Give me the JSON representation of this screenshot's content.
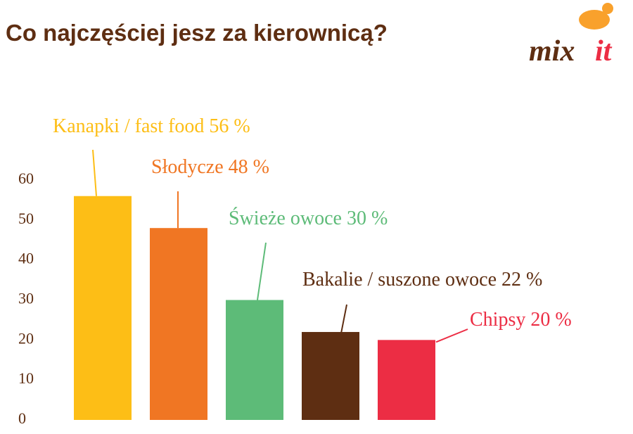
{
  "chart_data": {
    "type": "bar",
    "title": "Co najczęściej jesz za kierownicą?",
    "logo": {
      "left": "mix",
      "right": "it"
    },
    "categories": [
      "Kanapki / fast food",
      "Słodycze",
      "Świeże owoce",
      "Bakalie / suszone owoce",
      "Chipsy"
    ],
    "values": [
      56,
      48,
      30,
      22,
      20
    ],
    "value_labels": [
      "56 %",
      "48 %",
      "30 %",
      "22 %",
      "20 %"
    ],
    "colors": [
      "#fdbe16",
      "#f07623",
      "#5dbb78",
      "#5e2e12",
      "#ec2d44"
    ],
    "ylim": [
      0,
      60
    ],
    "yticks": [
      0,
      10,
      20,
      30,
      40,
      50,
      60
    ],
    "grid": false
  }
}
